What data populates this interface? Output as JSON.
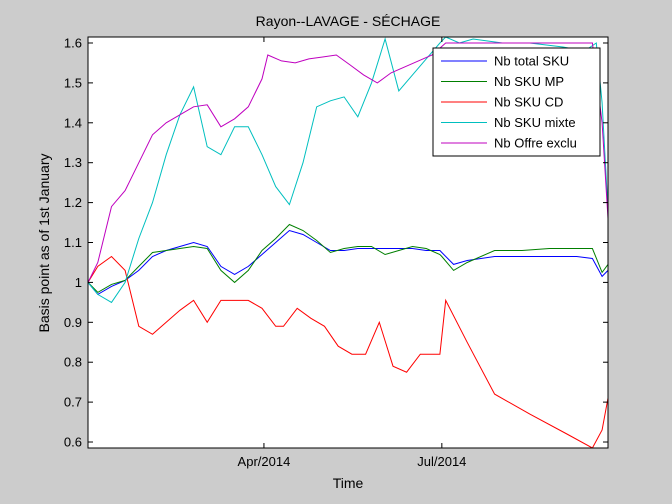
{
  "chart_data": {
    "type": "line",
    "title": "Rayon--LAVAGE - SÉCHAGE",
    "xlabel": "Time",
    "ylabel": "Basis point as of 1st January",
    "x_type": "date",
    "xlim": [
      "2014-01-01",
      "2014-09-24"
    ],
    "ylim": [
      0.585,
      1.615
    ],
    "yticks": [
      0.6,
      0.7,
      0.8,
      0.9,
      1,
      1.1,
      1.2,
      1.3,
      1.4,
      1.5,
      1.6
    ],
    "ytick_labels": [
      "0.6",
      "0.7",
      "0.8",
      "0.9",
      "1",
      "1.1",
      "1.2",
      "1.3",
      "1.4",
      "1.5",
      "1.6"
    ],
    "xticks": [
      "2014-04-01",
      "2014-07-01"
    ],
    "xtick_labels": [
      "Apr/2014",
      "Jul/2014"
    ],
    "grid": false,
    "legend_position": "top-right",
    "background": "#cccccc",
    "plot_background": "#ffffff",
    "series": [
      {
        "name": "Nb total SKU",
        "color": "#0000ff",
        "points": [
          [
            "2014-01-01",
            1.0
          ],
          [
            "2014-01-06",
            0.97
          ],
          [
            "2014-01-13",
            0.99
          ],
          [
            "2014-01-20",
            1.005
          ],
          [
            "2014-01-27",
            1.03
          ],
          [
            "2014-02-03",
            1.065
          ],
          [
            "2014-02-10",
            1.08
          ],
          [
            "2014-02-17",
            1.09
          ],
          [
            "2014-02-24",
            1.1
          ],
          [
            "2014-03-03",
            1.09
          ],
          [
            "2014-03-10",
            1.04
          ],
          [
            "2014-03-17",
            1.02
          ],
          [
            "2014-03-24",
            1.04
          ],
          [
            "2014-03-31",
            1.07
          ],
          [
            "2014-04-07",
            1.1
          ],
          [
            "2014-04-14",
            1.13
          ],
          [
            "2014-04-21",
            1.12
          ],
          [
            "2014-04-28",
            1.1
          ],
          [
            "2014-05-05",
            1.08
          ],
          [
            "2014-05-12",
            1.08
          ],
          [
            "2014-05-19",
            1.085
          ],
          [
            "2014-05-26",
            1.085
          ],
          [
            "2014-06-02",
            1.085
          ],
          [
            "2014-06-09",
            1.085
          ],
          [
            "2014-06-16",
            1.085
          ],
          [
            "2014-06-23",
            1.08
          ],
          [
            "2014-06-30",
            1.08
          ],
          [
            "2014-07-01",
            1.075
          ],
          [
            "2014-07-07",
            1.045
          ],
          [
            "2014-07-14",
            1.055
          ],
          [
            "2014-07-28",
            1.065
          ],
          [
            "2014-08-11",
            1.065
          ],
          [
            "2014-08-25",
            1.065
          ],
          [
            "2014-09-08",
            1.065
          ],
          [
            "2014-09-16",
            1.06
          ],
          [
            "2014-09-21",
            1.015
          ],
          [
            "2014-09-24",
            1.03
          ]
        ]
      },
      {
        "name": "Nb SKU MP",
        "color": "#007f00",
        "points": [
          [
            "2014-01-01",
            1.0
          ],
          [
            "2014-01-06",
            0.975
          ],
          [
            "2014-01-13",
            0.995
          ],
          [
            "2014-01-20",
            1.005
          ],
          [
            "2014-01-27",
            1.04
          ],
          [
            "2014-02-03",
            1.075
          ],
          [
            "2014-02-10",
            1.08
          ],
          [
            "2014-02-17",
            1.085
          ],
          [
            "2014-02-24",
            1.09
          ],
          [
            "2014-03-03",
            1.085
          ],
          [
            "2014-03-10",
            1.03
          ],
          [
            "2014-03-17",
            1.0
          ],
          [
            "2014-03-24",
            1.03
          ],
          [
            "2014-03-31",
            1.08
          ],
          [
            "2014-04-07",
            1.11
          ],
          [
            "2014-04-14",
            1.145
          ],
          [
            "2014-04-21",
            1.13
          ],
          [
            "2014-04-28",
            1.105
          ],
          [
            "2014-05-05",
            1.075
          ],
          [
            "2014-05-12",
            1.085
          ],
          [
            "2014-05-19",
            1.09
          ],
          [
            "2014-05-26",
            1.09
          ],
          [
            "2014-06-02",
            1.07
          ],
          [
            "2014-06-09",
            1.08
          ],
          [
            "2014-06-16",
            1.09
          ],
          [
            "2014-06-23",
            1.085
          ],
          [
            "2014-06-30",
            1.07
          ],
          [
            "2014-07-01",
            1.065
          ],
          [
            "2014-07-07",
            1.03
          ],
          [
            "2014-07-14",
            1.05
          ],
          [
            "2014-07-28",
            1.08
          ],
          [
            "2014-08-11",
            1.08
          ],
          [
            "2014-08-25",
            1.085
          ],
          [
            "2014-09-08",
            1.085
          ],
          [
            "2014-09-16",
            1.085
          ],
          [
            "2014-09-21",
            1.025
          ],
          [
            "2014-09-24",
            1.045
          ]
        ]
      },
      {
        "name": "Nb SKU CD",
        "color": "#ff0000",
        "points": [
          [
            "2014-01-01",
            1.0
          ],
          [
            "2014-01-06",
            1.04
          ],
          [
            "2014-01-13",
            1.065
          ],
          [
            "2014-01-20",
            1.03
          ],
          [
            "2014-01-27",
            0.89
          ],
          [
            "2014-02-03",
            0.87
          ],
          [
            "2014-02-10",
            0.9
          ],
          [
            "2014-02-17",
            0.93
          ],
          [
            "2014-02-24",
            0.955
          ],
          [
            "2014-03-03",
            0.9
          ],
          [
            "2014-03-10",
            0.955
          ],
          [
            "2014-03-17",
            0.955
          ],
          [
            "2014-03-24",
            0.955
          ],
          [
            "2014-03-31",
            0.935
          ],
          [
            "2014-04-07",
            0.89
          ],
          [
            "2014-04-11",
            0.89
          ],
          [
            "2014-04-18",
            0.935
          ],
          [
            "2014-04-25",
            0.91
          ],
          [
            "2014-05-02",
            0.89
          ],
          [
            "2014-05-09",
            0.84
          ],
          [
            "2014-05-16",
            0.82
          ],
          [
            "2014-05-23",
            0.82
          ],
          [
            "2014-05-30",
            0.9
          ],
          [
            "2014-06-06",
            0.79
          ],
          [
            "2014-06-13",
            0.775
          ],
          [
            "2014-06-20",
            0.82
          ],
          [
            "2014-06-25",
            0.82
          ],
          [
            "2014-06-30",
            0.82
          ],
          [
            "2014-07-03",
            0.955
          ],
          [
            "2014-07-14",
            0.85
          ],
          [
            "2014-07-28",
            0.72
          ],
          [
            "2014-08-15",
            0.67
          ],
          [
            "2014-09-03",
            0.62
          ],
          [
            "2014-09-16",
            0.585
          ],
          [
            "2014-09-21",
            0.63
          ],
          [
            "2014-09-24",
            0.71
          ]
        ]
      },
      {
        "name": "Nb SKU mixte",
        "color": "#00bfbf",
        "points": [
          [
            "2014-01-01",
            1.0
          ],
          [
            "2014-01-06",
            0.97
          ],
          [
            "2014-01-13",
            0.95
          ],
          [
            "2014-01-20",
            1.0
          ],
          [
            "2014-01-27",
            1.11
          ],
          [
            "2014-02-03",
            1.2
          ],
          [
            "2014-02-10",
            1.32
          ],
          [
            "2014-02-17",
            1.42
          ],
          [
            "2014-02-24",
            1.49
          ],
          [
            "2014-03-03",
            1.34
          ],
          [
            "2014-03-10",
            1.32
          ],
          [
            "2014-03-17",
            1.39
          ],
          [
            "2014-03-24",
            1.39
          ],
          [
            "2014-03-31",
            1.32
          ],
          [
            "2014-04-07",
            1.24
          ],
          [
            "2014-04-14",
            1.195
          ],
          [
            "2014-04-21",
            1.3
          ],
          [
            "2014-04-28",
            1.44
          ],
          [
            "2014-05-05",
            1.455
          ],
          [
            "2014-05-12",
            1.465
          ],
          [
            "2014-05-19",
            1.415
          ],
          [
            "2014-05-26",
            1.5
          ],
          [
            "2014-06-02",
            1.61
          ],
          [
            "2014-06-09",
            1.48
          ],
          [
            "2014-06-16",
            1.52
          ],
          [
            "2014-06-23",
            1.56
          ],
          [
            "2014-06-30",
            1.6
          ],
          [
            "2014-07-03",
            1.615
          ],
          [
            "2014-07-10",
            1.6
          ],
          [
            "2014-07-17",
            1.61
          ],
          [
            "2014-08-01",
            1.6
          ],
          [
            "2014-08-15",
            1.6
          ],
          [
            "2014-09-01",
            1.59
          ],
          [
            "2014-09-12",
            1.58
          ],
          [
            "2014-09-18",
            1.6
          ],
          [
            "2014-09-21",
            1.45
          ],
          [
            "2014-09-24",
            1.18
          ]
        ]
      },
      {
        "name": "Nb Offre exclu",
        "color": "#bf00bf",
        "points": [
          [
            "2014-01-01",
            1.0
          ],
          [
            "2014-01-06",
            1.05
          ],
          [
            "2014-01-13",
            1.19
          ],
          [
            "2014-01-20",
            1.23
          ],
          [
            "2014-01-27",
            1.3
          ],
          [
            "2014-02-03",
            1.37
          ],
          [
            "2014-02-10",
            1.4
          ],
          [
            "2014-02-17",
            1.42
          ],
          [
            "2014-02-24",
            1.44
          ],
          [
            "2014-03-03",
            1.445
          ],
          [
            "2014-03-10",
            1.39
          ],
          [
            "2014-03-17",
            1.41
          ],
          [
            "2014-03-24",
            1.44
          ],
          [
            "2014-03-31",
            1.51
          ],
          [
            "2014-04-03",
            1.57
          ],
          [
            "2014-04-10",
            1.555
          ],
          [
            "2014-04-17",
            1.55
          ],
          [
            "2014-04-24",
            1.56
          ],
          [
            "2014-05-01",
            1.565
          ],
          [
            "2014-05-08",
            1.57
          ],
          [
            "2014-05-15",
            1.545
          ],
          [
            "2014-05-22",
            1.52
          ],
          [
            "2014-05-29",
            1.5
          ],
          [
            "2014-06-05",
            1.525
          ],
          [
            "2014-06-12",
            1.54
          ],
          [
            "2014-06-19",
            1.555
          ],
          [
            "2014-06-26",
            1.57
          ],
          [
            "2014-07-03",
            1.6
          ],
          [
            "2014-07-17",
            1.6
          ],
          [
            "2014-08-01",
            1.6
          ],
          [
            "2014-08-15",
            1.6
          ],
          [
            "2014-09-01",
            1.6
          ],
          [
            "2014-09-12",
            1.6
          ],
          [
            "2014-09-16",
            1.6
          ],
          [
            "2014-09-21",
            1.4
          ],
          [
            "2014-09-24",
            1.16
          ]
        ]
      }
    ]
  }
}
